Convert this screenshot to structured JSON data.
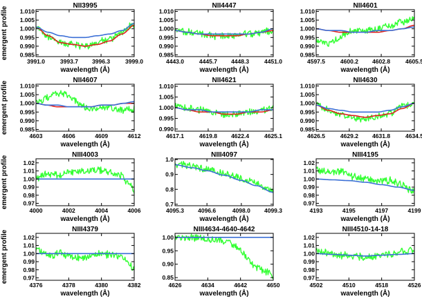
{
  "figure": {
    "colors": {
      "observed": "#33ff33",
      "model_blue": "#3b6fd6",
      "model_red": "#e02020"
    }
  },
  "chart_data": [
    {
      "type": "line",
      "title": "NII3995",
      "xlabel": "wavelength (Å)",
      "ylabel": "emergent profile",
      "xlim": [
        3991.0,
        3999.0
      ],
      "ylim": [
        0.984,
        1.011
      ],
      "x_ticks": [
        "3991.0",
        "3993.7",
        "3996.3",
        "3999.0"
      ],
      "y_ticks": [
        "0.985",
        "0.990",
        "0.995",
        "1.000",
        "1.005",
        "1.010"
      ],
      "series": [
        {
          "kind": "observed",
          "color": "#33ff33",
          "x": [
            3991.0,
            3992.0,
            3993.0,
            3994.0,
            3995.0,
            3996.0,
            3997.0,
            3998.0,
            3999.0
          ],
          "y": [
            1.002,
            0.995,
            0.992,
            0.991,
            0.99,
            0.992,
            0.994,
            0.998,
            1.003
          ]
        },
        {
          "kind": "model",
          "color": "#e02020",
          "x": [
            3991.0,
            3992.0,
            3993.0,
            3994.0,
            3995.0,
            3996.0,
            3997.0,
            3998.0,
            3999.0
          ],
          "y": [
            1.001,
            0.996,
            0.992,
            0.991,
            0.99,
            0.991,
            0.993,
            0.997,
            1.002
          ]
        },
        {
          "kind": "model",
          "color": "#3b6fd6",
          "x": [
            3991.0,
            3992.0,
            3993.0,
            3994.0,
            3995.0,
            3996.0,
            3997.0,
            3998.0,
            3999.0
          ],
          "y": [
            1.001,
            0.998,
            0.996,
            0.995,
            0.995,
            0.996,
            0.997,
            0.999,
            1.003
          ]
        }
      ]
    },
    {
      "type": "line",
      "title": "NII4447",
      "xlabel": "wavelength (Å)",
      "ylabel": "",
      "xlim": [
        4443.0,
        4451.0
      ],
      "ylim": [
        0.984,
        1.011
      ],
      "x_ticks": [
        "4443.0",
        "4445.7",
        "4448.3",
        "4451.0"
      ],
      "y_ticks": [
        "0.985",
        "0.990",
        "0.995",
        "1.000",
        "1.005",
        "1.010"
      ],
      "series": [
        {
          "kind": "observed",
          "color": "#33ff33",
          "x": [
            4443.0,
            4444.0,
            4445.0,
            4446.0,
            4447.0,
            4448.0,
            4449.0,
            4450.0,
            4451.0
          ],
          "y": [
            1.0,
            0.998,
            0.997,
            0.996,
            0.996,
            0.996,
            0.997,
            0.998,
            0.999
          ]
        },
        {
          "kind": "model",
          "color": "#e02020",
          "x": [
            4443.0,
            4444.0,
            4445.0,
            4446.0,
            4447.0,
            4448.0,
            4449.0,
            4450.0,
            4451.0
          ],
          "y": [
            0.999,
            0.998,
            0.997,
            0.996,
            0.996,
            0.996,
            0.997,
            0.998,
            0.999
          ]
        },
        {
          "kind": "model",
          "color": "#3b6fd6",
          "x": [
            4443.0,
            4444.0,
            4445.0,
            4446.0,
            4447.0,
            4448.0,
            4449.0,
            4450.0,
            4451.0
          ],
          "y": [
            0.999,
            0.998,
            0.997,
            0.997,
            0.997,
            0.997,
            0.997,
            0.998,
            1.0
          ]
        }
      ]
    },
    {
      "type": "line",
      "title": "NII4601",
      "xlabel": "wavelength (Å)",
      "ylabel": "",
      "xlim": [
        4597.5,
        4605.5
      ],
      "ylim": [
        0.984,
        1.011
      ],
      "x_ticks": [
        "4597.5",
        "4600.2",
        "4602.8",
        "4605.5"
      ],
      "y_ticks": [
        "0.985",
        "0.990",
        "0.995",
        "1.000",
        "1.005",
        "1.010"
      ],
      "series": [
        {
          "kind": "observed",
          "color": "#33ff33",
          "x": [
            4597.5,
            4598.5,
            4599.5,
            4600.5,
            4601.5,
            4602.5,
            4603.5,
            4604.5,
            4605.5
          ],
          "y": [
            0.994,
            0.991,
            0.996,
            0.999,
            0.999,
            1.0,
            1.002,
            1.004,
            1.006
          ]
        },
        {
          "kind": "model",
          "color": "#e02020",
          "x": [
            4597.5,
            4598.5,
            4599.5,
            4600.5,
            4601.5,
            4602.5,
            4603.5,
            4604.5,
            4605.5
          ],
          "y": [
            1.0,
            0.999,
            0.998,
            0.998,
            0.998,
            0.998,
            0.999,
            1.0,
            1.002
          ]
        },
        {
          "kind": "model",
          "color": "#3b6fd6",
          "x": [
            4597.5,
            4598.5,
            4599.5,
            4600.5,
            4601.5,
            4602.5,
            4603.5,
            4604.5,
            4605.5
          ],
          "y": [
            1.0,
            0.999,
            0.999,
            0.998,
            0.998,
            0.999,
            0.999,
            1.0,
            1.001
          ]
        }
      ]
    },
    {
      "type": "line",
      "title": "NII4607",
      "xlabel": "wavelength (Å)",
      "ylabel": "emergent profile",
      "xlim": [
        4603,
        4612
      ],
      "ylim": [
        0.984,
        1.011
      ],
      "x_ticks": [
        "4603",
        "4606",
        "4609",
        "4612"
      ],
      "y_ticks": [
        "0.985",
        "0.990",
        "0.995",
        "1.000",
        "1.005",
        "1.010"
      ],
      "series": [
        {
          "kind": "observed",
          "color": "#33ff33",
          "x": [
            4603.0,
            4604.0,
            4605.0,
            4606.0,
            4607.0,
            4608.0,
            4609.0,
            4610.0,
            4611.0,
            4612.0
          ],
          "y": [
            1.0,
            1.003,
            1.006,
            1.004,
            0.999,
            0.997,
            0.998,
            0.997,
            0.996,
            0.997
          ]
        },
        {
          "kind": "model",
          "color": "#e02020",
          "x": [
            4603.0,
            4604.0,
            4605.0,
            4606.0,
            4607.0,
            4608.0,
            4609.0,
            4610.0,
            4611.0,
            4612.0
          ],
          "y": [
            1.0,
            0.999,
            0.998,
            0.998,
            0.998,
            0.998,
            0.999,
            0.999,
            1.0,
            1.0
          ]
        },
        {
          "kind": "model",
          "color": "#3b6fd6",
          "x": [
            4603.0,
            4604.0,
            4605.0,
            4606.0,
            4607.0,
            4608.0,
            4609.0,
            4610.0,
            4611.0,
            4612.0
          ],
          "y": [
            1.0,
            0.999,
            0.999,
            0.998,
            0.998,
            0.998,
            0.999,
            0.999,
            1.0,
            1.001
          ]
        }
      ]
    },
    {
      "type": "line",
      "title": "NII4621",
      "xlabel": "wavelength (Å)",
      "ylabel": "",
      "xlim": [
        4617.1,
        4625.1
      ],
      "ylim": [
        0.989,
        1.011
      ],
      "x_ticks": [
        "4617.1",
        "4619.8",
        "4622.4",
        "4625.1"
      ],
      "y_ticks": [
        "0.990",
        "0.995",
        "1.000",
        "1.005",
        "1.010"
      ],
      "series": [
        {
          "kind": "observed",
          "color": "#33ff33",
          "x": [
            4617.1,
            4618.1,
            4619.1,
            4620.1,
            4621.1,
            4622.1,
            4623.1,
            4624.1,
            4625.1
          ],
          "y": [
            1.001,
            1.0,
            0.999,
            0.998,
            0.997,
            0.997,
            0.998,
            0.999,
            1.0
          ]
        },
        {
          "kind": "model",
          "color": "#e02020",
          "x": [
            4617.1,
            4618.1,
            4619.1,
            4620.1,
            4621.1,
            4622.1,
            4623.1,
            4624.1,
            4625.1
          ],
          "y": [
            1.0,
            0.999,
            0.998,
            0.998,
            0.997,
            0.997,
            0.998,
            0.998,
            0.999
          ]
        },
        {
          "kind": "model",
          "color": "#3b6fd6",
          "x": [
            4617.1,
            4618.1,
            4619.1,
            4620.1,
            4621.1,
            4622.1,
            4623.1,
            4624.1,
            4625.1
          ],
          "y": [
            1.0,
            0.999,
            0.999,
            0.998,
            0.998,
            0.998,
            0.998,
            0.999,
            0.999
          ]
        }
      ]
    },
    {
      "type": "line",
      "title": "NII4630",
      "xlabel": "wavelength (Å)",
      "ylabel": "",
      "xlim": [
        4626.5,
        4634.5
      ],
      "ylim": [
        0.984,
        1.011
      ],
      "x_ticks": [
        "4626.5",
        "4629.2",
        "4631.8",
        "4634.5"
      ],
      "y_ticks": [
        "0.985",
        "0.990",
        "0.995",
        "1.000",
        "1.005",
        "1.010"
      ],
      "series": [
        {
          "kind": "observed",
          "color": "#33ff33",
          "x": [
            4626.5,
            4627.5,
            4628.5,
            4629.5,
            4630.5,
            4631.5,
            4632.5,
            4633.5,
            4634.5
          ],
          "y": [
            1.0,
            0.996,
            0.994,
            0.992,
            0.991,
            0.992,
            0.994,
            0.998,
            1.0
          ]
        },
        {
          "kind": "model",
          "color": "#e02020",
          "x": [
            4626.5,
            4627.5,
            4628.5,
            4629.5,
            4630.5,
            4631.5,
            4632.5,
            4633.5,
            4634.5
          ],
          "y": [
            0.999,
            0.996,
            0.994,
            0.993,
            0.992,
            0.993,
            0.994,
            0.997,
            1.0
          ]
        },
        {
          "kind": "model",
          "color": "#3b6fd6",
          "x": [
            4626.5,
            4627.5,
            4628.5,
            4629.5,
            4630.5,
            4631.5,
            4632.5,
            4633.5,
            4634.5
          ],
          "y": [
            0.999,
            0.997,
            0.996,
            0.995,
            0.995,
            0.995,
            0.996,
            0.998,
            1.0
          ]
        }
      ]
    },
    {
      "type": "line",
      "title": "NIII4003",
      "xlabel": "wavelength (Å)",
      "ylabel": "emergent profile",
      "xlim": [
        4000,
        4006
      ],
      "ylim": [
        0.967,
        1.025
      ],
      "x_ticks": [
        "4000",
        "4002",
        "4004",
        "4006"
      ],
      "y_ticks": [
        "0.97",
        "0.98",
        "0.99",
        "1.00",
        "1.01",
        "1.02"
      ],
      "series": [
        {
          "kind": "observed",
          "color": "#33ff33",
          "x": [
            4000.0,
            4000.75,
            4001.5,
            4002.25,
            4003.0,
            4003.75,
            4004.5,
            4005.25,
            4006.0
          ],
          "y": [
            1.001,
            1.007,
            1.004,
            1.009,
            1.01,
            1.011,
            1.009,
            1.004,
            0.985
          ]
        },
        {
          "kind": "model",
          "color": "#3b6fd6",
          "x": [
            4000.0,
            4001.0,
            4002.0,
            4003.0,
            4004.0,
            4005.0,
            4006.0
          ],
          "y": [
            1.0,
            1.0,
            1.0,
            1.0,
            1.0,
            1.0,
            1.0
          ]
        }
      ]
    },
    {
      "type": "line",
      "title": "NIII4097",
      "xlabel": "wavelength (Å)",
      "ylabel": "",
      "xlim": [
        4095.3,
        4099.3
      ],
      "ylim": [
        0.69,
        1.005
      ],
      "x_ticks": [
        "4095.3",
        "4096.6",
        "4098.0",
        "4099.3"
      ],
      "y_ticks": [
        "0.7",
        "0.8",
        "0.9",
        "1.0"
      ],
      "series": [
        {
          "kind": "observed",
          "color": "#33ff33",
          "x": [
            4095.3,
            4096.0,
            4096.6,
            4097.3,
            4098.0,
            4098.6,
            4099.3
          ],
          "y": [
            0.975,
            0.955,
            0.935,
            0.905,
            0.87,
            0.84,
            0.79
          ]
        },
        {
          "kind": "model",
          "color": "#3b6fd6",
          "x": [
            4095.3,
            4096.0,
            4096.6,
            4097.3,
            4098.0,
            4098.6,
            4099.3
          ],
          "y": [
            0.965,
            0.945,
            0.925,
            0.895,
            0.86,
            0.825,
            0.78
          ]
        }
      ]
    },
    {
      "type": "line",
      "title": "NIII4195",
      "xlabel": "wavelength (Å)",
      "ylabel": "",
      "xlim": [
        4193,
        4199
      ],
      "ylim": [
        0.967,
        1.025
      ],
      "x_ticks": [
        "4193",
        "4195",
        "4197",
        "4199"
      ],
      "y_ticks": [
        "0.97",
        "0.98",
        "0.99",
        "1.00",
        "1.01",
        "1.02"
      ],
      "series": [
        {
          "kind": "observed",
          "color": "#33ff33",
          "x": [
            4193.0,
            4193.75,
            4194.5,
            4195.25,
            4196.0,
            4196.75,
            4197.5,
            4198.25,
            4199.0
          ],
          "y": [
            1.012,
            1.008,
            1.01,
            1.003,
            1.0,
            0.997,
            0.999,
            0.992,
            0.984
          ]
        },
        {
          "kind": "model",
          "color": "#3b6fd6",
          "x": [
            4193.0,
            4194.0,
            4195.0,
            4196.0,
            4197.0,
            4198.0,
            4199.0
          ],
          "y": [
            1.0,
            0.999,
            0.998,
            0.996,
            0.993,
            0.99,
            0.986
          ]
        }
      ]
    },
    {
      "type": "line",
      "title": "NIII4379",
      "xlabel": "wavelength (Å)",
      "ylabel": "emergent profile",
      "xlim": [
        4376,
        4382
      ],
      "ylim": [
        0.967,
        1.025
      ],
      "x_ticks": [
        "4376",
        "4378",
        "4380",
        "4382"
      ],
      "y_ticks": [
        "0.97",
        "0.98",
        "0.99",
        "1.00",
        "1.01",
        "1.02"
      ],
      "series": [
        {
          "kind": "observed",
          "color": "#33ff33",
          "x": [
            4376.0,
            4376.75,
            4377.5,
            4378.25,
            4379.0,
            4379.75,
            4380.5,
            4381.25,
            4382.0
          ],
          "y": [
            1.005,
            0.997,
            1.001,
            0.995,
            0.994,
            1.0,
            0.999,
            0.996,
            0.98
          ]
        },
        {
          "kind": "model",
          "color": "#3b6fd6",
          "x": [
            4376.0,
            4377.0,
            4378.0,
            4379.0,
            4380.0,
            4381.0,
            4382.0
          ],
          "y": [
            1.0,
            1.0,
            1.0,
            1.0,
            1.0,
            1.0,
            1.0
          ]
        }
      ]
    },
    {
      "type": "line",
      "title": "NIII4634-4640-4642",
      "xlabel": "wavelength (Å)",
      "ylabel": "",
      "xlim": [
        4626,
        4650
      ],
      "ylim": [
        0.84,
        1.015
      ],
      "x_ticks": [
        "4626",
        "4634",
        "4642",
        "4650"
      ],
      "y_ticks": [
        "0.85",
        "0.90",
        "0.95",
        "1.00"
      ],
      "series": [
        {
          "kind": "observed",
          "color": "#33ff33",
          "x": [
            4626,
            4630,
            4633,
            4636,
            4639,
            4641,
            4643,
            4645,
            4647,
            4650
          ],
          "y": [
            1.0,
            0.998,
            0.993,
            0.99,
            0.985,
            0.965,
            0.93,
            0.9,
            0.88,
            0.86
          ]
        },
        {
          "kind": "model",
          "color": "#3b6fd6",
          "x": [
            4626,
            4630,
            4634,
            4638,
            4642,
            4646,
            4650
          ],
          "y": [
            1.0,
            1.0,
            1.0,
            1.0,
            1.0,
            1.0,
            1.0
          ]
        }
      ]
    },
    {
      "type": "line",
      "title": "NIII4510-14-18",
      "xlabel": "wavelength (Å)",
      "ylabel": "",
      "xlim": [
        4502,
        4526
      ],
      "ylim": [
        0.967,
        1.025
      ],
      "x_ticks": [
        "4502",
        "4510",
        "4518",
        "4526"
      ],
      "y_ticks": [
        "0.97",
        "0.98",
        "0.99",
        "1.00",
        "1.01",
        "1.02"
      ],
      "series": [
        {
          "kind": "observed",
          "color": "#33ff33",
          "x": [
            4502,
            4505,
            4508,
            4511,
            4514,
            4517,
            4520,
            4523,
            4526
          ],
          "y": [
            1.003,
            1.001,
            0.998,
            0.997,
            0.995,
            0.996,
            0.999,
            1.002,
            1.004
          ]
        },
        {
          "kind": "model",
          "color": "#3b6fd6",
          "x": [
            4502,
            4506,
            4510,
            4514,
            4518,
            4522,
            4526
          ],
          "y": [
            1.0,
            0.999,
            0.998,
            0.997,
            0.998,
            0.999,
            1.0
          ]
        }
      ]
    }
  ]
}
